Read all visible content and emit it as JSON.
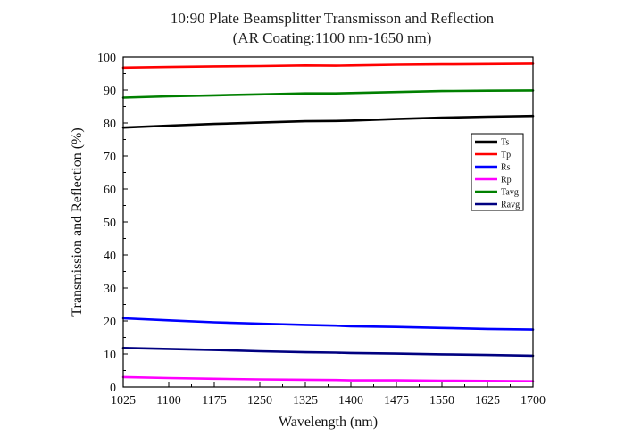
{
  "chart_data": {
    "type": "line",
    "title": "10:90 Plate Beamsplitter Transmisson and Reflection",
    "subtitle": "(AR Coating:1100 nm-1650 nm)",
    "xlabel": "Wavelength (nm)",
    "ylabel": "Transmission and Reflection (%)",
    "xlim": [
      1025,
      1700
    ],
    "ylim": [
      0,
      100
    ],
    "xticks": [
      1025,
      1100,
      1175,
      1250,
      1325,
      1400,
      1475,
      1550,
      1625,
      1700
    ],
    "yticks": [
      0,
      10,
      20,
      30,
      40,
      50,
      60,
      70,
      80,
      90,
      100
    ],
    "grid": false,
    "legend_position": "right, upper-middle",
    "x": [
      1025,
      1100,
      1175,
      1250,
      1325,
      1375,
      1400,
      1475,
      1550,
      1625,
      1700
    ],
    "series": [
      {
        "name": "Ts",
        "color": "#000000",
        "values": [
          78.6,
          79.2,
          79.7,
          80.1,
          80.5,
          80.6,
          80.7,
          81.2,
          81.6,
          81.9,
          82.1
        ]
      },
      {
        "name": "Tp",
        "color": "#ff0000",
        "values": [
          96.8,
          97.0,
          97.2,
          97.3,
          97.5,
          97.4,
          97.5,
          97.7,
          97.8,
          97.9,
          98.0
        ]
      },
      {
        "name": "Rs",
        "color": "#0000ff",
        "values": [
          20.8,
          20.2,
          19.6,
          19.2,
          18.8,
          18.6,
          18.4,
          18.2,
          17.9,
          17.6,
          17.4
        ]
      },
      {
        "name": "Rp",
        "color": "#ff00ff",
        "values": [
          3.0,
          2.7,
          2.5,
          2.3,
          2.2,
          2.1,
          2.0,
          2.0,
          1.9,
          1.8,
          1.7
        ]
      },
      {
        "name": "Tavg",
        "color": "#008000",
        "values": [
          87.7,
          88.1,
          88.4,
          88.7,
          89.0,
          89.0,
          89.1,
          89.4,
          89.7,
          89.8,
          89.9
        ]
      },
      {
        "name": "Ravg",
        "color": "#000080",
        "values": [
          11.8,
          11.5,
          11.2,
          10.8,
          10.5,
          10.4,
          10.3,
          10.1,
          9.9,
          9.7,
          9.5
        ]
      }
    ]
  }
}
